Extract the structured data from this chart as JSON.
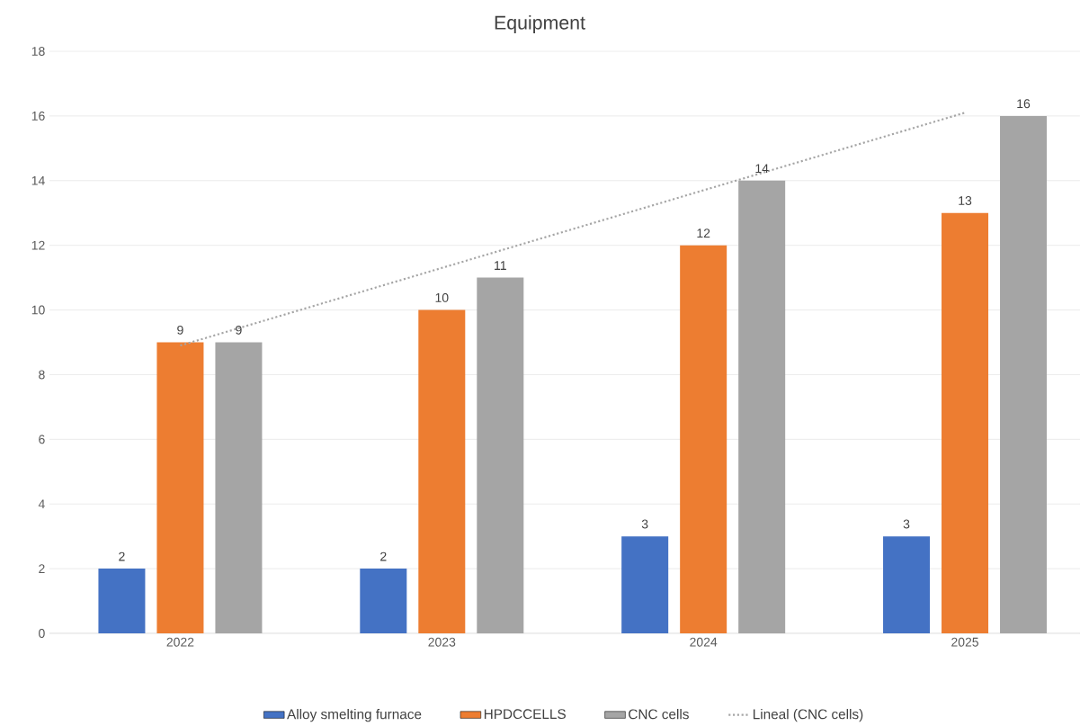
{
  "chart_data": {
    "type": "bar",
    "title": "Equipment",
    "categories": [
      "2022",
      "2023",
      "2024",
      "2025"
    ],
    "series": [
      {
        "name": "Alloy smelting furnace",
        "color": "#4472c4",
        "values": [
          2,
          2,
          3,
          3
        ],
        "value_labels": [
          "2",
          "2",
          "3",
          "3"
        ]
      },
      {
        "name": "HPDCCELLS",
        "color": "#ed7d31",
        "values": [
          9,
          10,
          12,
          13
        ],
        "value_labels": [
          "9",
          "10",
          "12",
          "13"
        ]
      },
      {
        "name": "CNC cells",
        "color": "#a5a5a5",
        "values": [
          9,
          11,
          14,
          16
        ],
        "value_labels": [
          "9",
          "11",
          "14",
          "16"
        ]
      },
      {
        "name": "Lineal (CNC cells)",
        "type": "line",
        "color": "#a5a5a5",
        "line_style": "dotted",
        "values": [
          8.9,
          11.3,
          13.7,
          16.1
        ]
      }
    ],
    "ylim": [
      0,
      18
    ],
    "yticks": [
      0,
      2,
      4,
      6,
      8,
      10,
      12,
      14,
      16,
      18
    ],
    "grid": "y",
    "legend": "bottom"
  }
}
